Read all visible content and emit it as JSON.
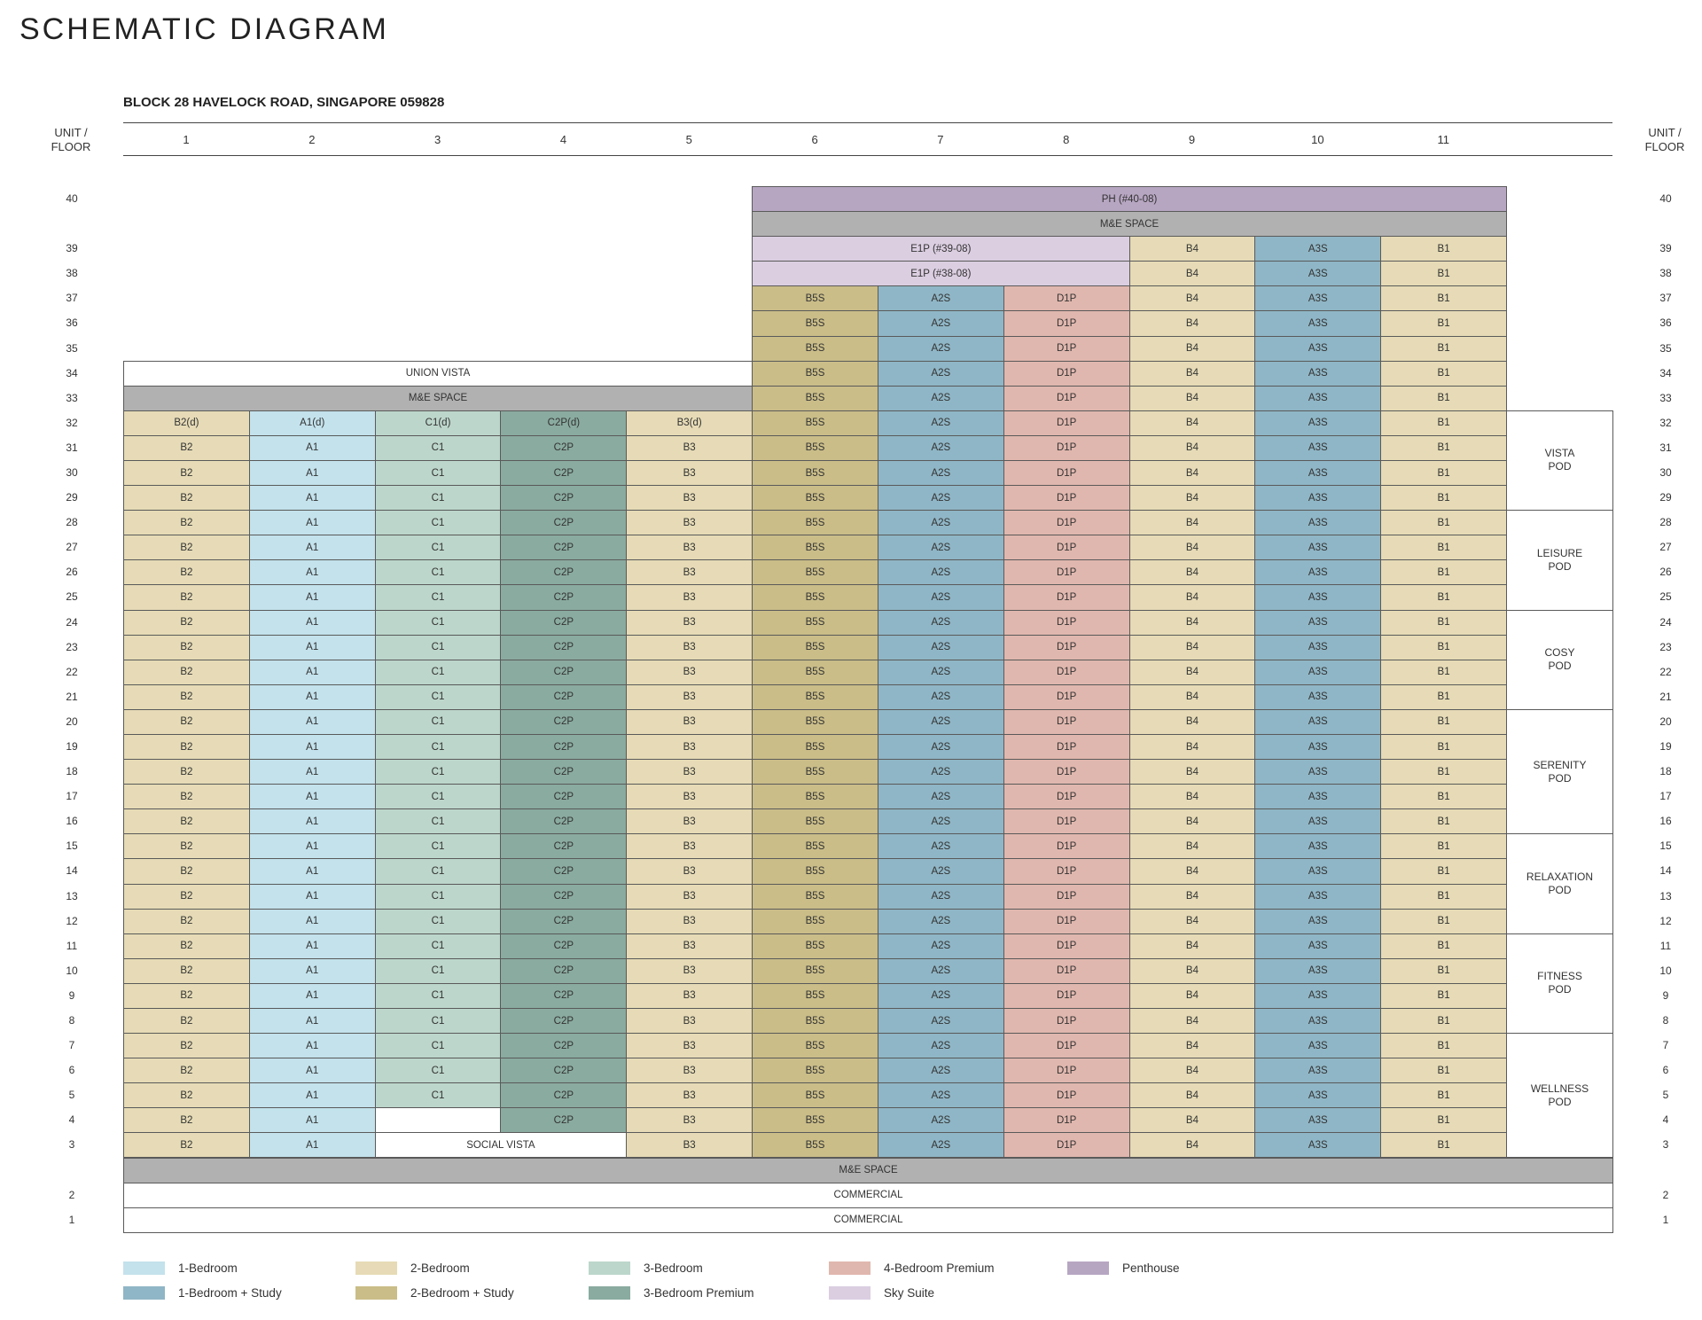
{
  "title": "SCHEMATIC DIAGRAM",
  "block_title": "BLOCK 28 HAVELOCK ROAD, SINGAPORE 059828",
  "unit_floor_label": "UNIT /\nFLOOR",
  "columns": [
    "1",
    "2",
    "3",
    "4",
    "5",
    "6",
    "7",
    "8",
    "9",
    "10",
    "11"
  ],
  "colors": {
    "A1": "#c3e2ec",
    "A2S": "#8fb6c6",
    "A3S": "#8fb6c6",
    "B": "#e6dbb6",
    "B5S": "#cabd88",
    "C1": "#bcd6cb",
    "C2P": "#8aaba0",
    "D1P": "#e0b7ae",
    "PH": "#b7a6c2",
    "E1P": "#dbcee1",
    "ME": "#b1b1b1",
    "white": "#ffffff"
  },
  "upper_rows": [
    {
      "floor": "40",
      "spans": [
        {
          "from": 6,
          "to": 11,
          "label": "PH (#40-08)",
          "color": "PH"
        }
      ]
    },
    {
      "floor": "",
      "spans": [
        {
          "from": 6,
          "to": 11,
          "label": "M&E SPACE",
          "color": "ME"
        }
      ]
    },
    {
      "floor": "39",
      "spans": [
        {
          "from": 6,
          "to": 8,
          "label": "E1P (#39-08)",
          "color": "E1P"
        },
        {
          "from": 9,
          "to": 9,
          "label": "B4",
          "color": "B"
        },
        {
          "from": 10,
          "to": 10,
          "label": "A3S",
          "color": "A3S"
        },
        {
          "from": 11,
          "to": 11,
          "label": "B1",
          "color": "B"
        }
      ]
    },
    {
      "floor": "38",
      "spans": [
        {
          "from": 6,
          "to": 8,
          "label": "E1P (#38-08)",
          "color": "E1P"
        },
        {
          "from": 9,
          "to": 9,
          "label": "B4",
          "color": "B"
        },
        {
          "from": 10,
          "to": 10,
          "label": "A3S",
          "color": "A3S"
        },
        {
          "from": 11,
          "to": 11,
          "label": "B1",
          "color": "B"
        }
      ]
    },
    {
      "floor": "37",
      "spans": [
        {
          "from": 6,
          "to": 6,
          "label": "B5S",
          "color": "B5S"
        },
        {
          "from": 7,
          "to": 7,
          "label": "A2S",
          "color": "A2S"
        },
        {
          "from": 8,
          "to": 8,
          "label": "D1P",
          "color": "D1P"
        },
        {
          "from": 9,
          "to": 9,
          "label": "B4",
          "color": "B"
        },
        {
          "from": 10,
          "to": 10,
          "label": "A3S",
          "color": "A3S"
        },
        {
          "from": 11,
          "to": 11,
          "label": "B1",
          "color": "B"
        }
      ]
    },
    {
      "floor": "36",
      "spans": [
        {
          "from": 6,
          "to": 6,
          "label": "B5S",
          "color": "B5S"
        },
        {
          "from": 7,
          "to": 7,
          "label": "A2S",
          "color": "A2S"
        },
        {
          "from": 8,
          "to": 8,
          "label": "D1P",
          "color": "D1P"
        },
        {
          "from": 9,
          "to": 9,
          "label": "B4",
          "color": "B"
        },
        {
          "from": 10,
          "to": 10,
          "label": "A3S",
          "color": "A3S"
        },
        {
          "from": 11,
          "to": 11,
          "label": "B1",
          "color": "B"
        }
      ]
    },
    {
      "floor": "35",
      "spans": [
        {
          "from": 6,
          "to": 6,
          "label": "B5S",
          "color": "B5S"
        },
        {
          "from": 7,
          "to": 7,
          "label": "A2S",
          "color": "A2S"
        },
        {
          "from": 8,
          "to": 8,
          "label": "D1P",
          "color": "D1P"
        },
        {
          "from": 9,
          "to": 9,
          "label": "B4",
          "color": "B"
        },
        {
          "from": 10,
          "to": 10,
          "label": "A3S",
          "color": "A3S"
        },
        {
          "from": 11,
          "to": 11,
          "label": "B1",
          "color": "B"
        }
      ]
    },
    {
      "floor": "34",
      "spans": [
        {
          "from": 1,
          "to": 5,
          "label": "UNION VISTA",
          "color": "white"
        },
        {
          "from": 6,
          "to": 6,
          "label": "B5S",
          "color": "B5S"
        },
        {
          "from": 7,
          "to": 7,
          "label": "A2S",
          "color": "A2S"
        },
        {
          "from": 8,
          "to": 8,
          "label": "D1P",
          "color": "D1P"
        },
        {
          "from": 9,
          "to": 9,
          "label": "B4",
          "color": "B"
        },
        {
          "from": 10,
          "to": 10,
          "label": "A3S",
          "color": "A3S"
        },
        {
          "from": 11,
          "to": 11,
          "label": "B1",
          "color": "B"
        }
      ]
    },
    {
      "floor": "33",
      "spans": [
        {
          "from": 1,
          "to": 5,
          "label": "M&E SPACE",
          "color": "ME"
        },
        {
          "from": 6,
          "to": 6,
          "label": "B5S",
          "color": "B5S"
        },
        {
          "from": 7,
          "to": 7,
          "label": "A2S",
          "color": "A2S"
        },
        {
          "from": 8,
          "to": 8,
          "label": "D1P",
          "color": "D1P"
        },
        {
          "from": 9,
          "to": 9,
          "label": "B4",
          "color": "B"
        },
        {
          "from": 10,
          "to": 10,
          "label": "A3S",
          "color": "A3S"
        },
        {
          "from": 11,
          "to": 11,
          "label": "B1",
          "color": "B"
        }
      ]
    },
    {
      "floor": "32",
      "spans": [
        {
          "from": 1,
          "to": 1,
          "label": "B2(d)",
          "color": "B"
        },
        {
          "from": 2,
          "to": 2,
          "label": "A1(d)",
          "color": "A1"
        },
        {
          "from": 3,
          "to": 3,
          "label": "C1(d)",
          "color": "C1"
        },
        {
          "from": 4,
          "to": 4,
          "label": "C2P(d)",
          "color": "C2P"
        },
        {
          "from": 5,
          "to": 5,
          "label": "B3(d)",
          "color": "B"
        },
        {
          "from": 6,
          "to": 6,
          "label": "B5S",
          "color": "B5S"
        },
        {
          "from": 7,
          "to": 7,
          "label": "A2S",
          "color": "A2S"
        },
        {
          "from": 8,
          "to": 8,
          "label": "D1P",
          "color": "D1P"
        },
        {
          "from": 9,
          "to": 9,
          "label": "B4",
          "color": "B"
        },
        {
          "from": 10,
          "to": 10,
          "label": "A3S",
          "color": "A3S"
        },
        {
          "from": 11,
          "to": 11,
          "label": "B1",
          "color": "B"
        }
      ]
    }
  ],
  "typical_floors": [
    "31",
    "30",
    "29",
    "28",
    "27",
    "26",
    "25",
    "24",
    "23",
    "22",
    "21",
    "20",
    "19",
    "18",
    "17",
    "16",
    "15",
    "14",
    "13",
    "12",
    "11",
    "10",
    "9",
    "8",
    "7",
    "6",
    "5"
  ],
  "typical_units": [
    "B2",
    "A1",
    "C1",
    "C2P",
    "B3",
    "B5S",
    "A2S",
    "D1P",
    "B4",
    "A3S",
    "B1"
  ],
  "typical_unit_colors": [
    "B",
    "A1",
    "C1",
    "C2P",
    "B",
    "B5S",
    "A2S",
    "D1P",
    "B",
    "A3S",
    "B"
  ],
  "lower_rows": [
    {
      "floor": "4",
      "spans": [
        {
          "from": 1,
          "to": 1,
          "label": "B2",
          "color": "B"
        },
        {
          "from": 2,
          "to": 2,
          "label": "A1",
          "color": "A1"
        },
        {
          "from": 3,
          "to": 3,
          "label": "",
          "color": "white",
          "noBottom": true
        },
        {
          "from": 4,
          "to": 4,
          "label": "C2P",
          "color": "C2P"
        },
        {
          "from": 5,
          "to": 5,
          "label": "B3",
          "color": "B"
        },
        {
          "from": 6,
          "to": 6,
          "label": "B5S",
          "color": "B5S"
        },
        {
          "from": 7,
          "to": 7,
          "label": "A2S",
          "color": "A2S"
        },
        {
          "from": 8,
          "to": 8,
          "label": "D1P",
          "color": "D1P"
        },
        {
          "from": 9,
          "to": 9,
          "label": "B4",
          "color": "B"
        },
        {
          "from": 10,
          "to": 10,
          "label": "A3S",
          "color": "A3S"
        },
        {
          "from": 11,
          "to": 11,
          "label": "B1",
          "color": "B"
        }
      ]
    },
    {
      "floor": "3",
      "spans": [
        {
          "from": 1,
          "to": 1,
          "label": "B2",
          "color": "B"
        },
        {
          "from": 2,
          "to": 2,
          "label": "A1",
          "color": "A1"
        },
        {
          "from": 3,
          "to": 4,
          "label": "SOCIAL VISTA",
          "color": "white"
        },
        {
          "from": 5,
          "to": 5,
          "label": "B3",
          "color": "B"
        },
        {
          "from": 6,
          "to": 6,
          "label": "B5S",
          "color": "B5S"
        },
        {
          "from": 7,
          "to": 7,
          "label": "A2S",
          "color": "A2S"
        },
        {
          "from": 8,
          "to": 8,
          "label": "D1P",
          "color": "D1P"
        },
        {
          "from": 9,
          "to": 9,
          "label": "B4",
          "color": "B"
        },
        {
          "from": 10,
          "to": 10,
          "label": "A3S",
          "color": "A3S"
        },
        {
          "from": 11,
          "to": 11,
          "label": "B1",
          "color": "B"
        }
      ]
    },
    {
      "floor": "",
      "spans": [
        {
          "from": 1,
          "to": 12,
          "label": "M&E SPACE",
          "color": "ME"
        }
      ]
    },
    {
      "floor": "2",
      "spans": [
        {
          "from": 1,
          "to": 12,
          "label": "COMMERCIAL",
          "color": "white"
        }
      ]
    },
    {
      "floor": "1",
      "spans": [
        {
          "from": 1,
          "to": 12,
          "label": "COMMERCIAL",
          "color": "white"
        }
      ]
    }
  ],
  "pods": [
    {
      "label": "VISTA\nPOD",
      "top_floor": "32",
      "bottom_floor": "29"
    },
    {
      "label": "LEISURE\nPOD",
      "top_floor": "28",
      "bottom_floor": "25"
    },
    {
      "label": "COSY\nPOD",
      "top_floor": "24",
      "bottom_floor": "21"
    },
    {
      "label": "SERENITY\nPOD",
      "top_floor": "20",
      "bottom_floor": "16"
    },
    {
      "label": "RELAXATION\nPOD",
      "top_floor": "15",
      "bottom_floor": "12"
    },
    {
      "label": "FITNESS\nPOD",
      "top_floor": "11",
      "bottom_floor": "8"
    },
    {
      "label": "WELLNESS\nPOD",
      "top_floor": "7",
      "bottom_floor": "3"
    }
  ],
  "legend": [
    {
      "label": "1-Bedroom",
      "color": "A1"
    },
    {
      "label": "1-Bedroom + Study",
      "color": "A2S"
    },
    {
      "label": "2-Bedroom",
      "color": "B"
    },
    {
      "label": "2-Bedroom + Study",
      "color": "B5S"
    },
    {
      "label": "3-Bedroom",
      "color": "C1"
    },
    {
      "label": "3-Bedroom Premium",
      "color": "C2P"
    },
    {
      "label": "4-Bedroom Premium",
      "color": "D1P"
    },
    {
      "label": "Sky Suite",
      "color": "E1P"
    },
    {
      "label": "Penthouse",
      "color": "PH"
    }
  ]
}
